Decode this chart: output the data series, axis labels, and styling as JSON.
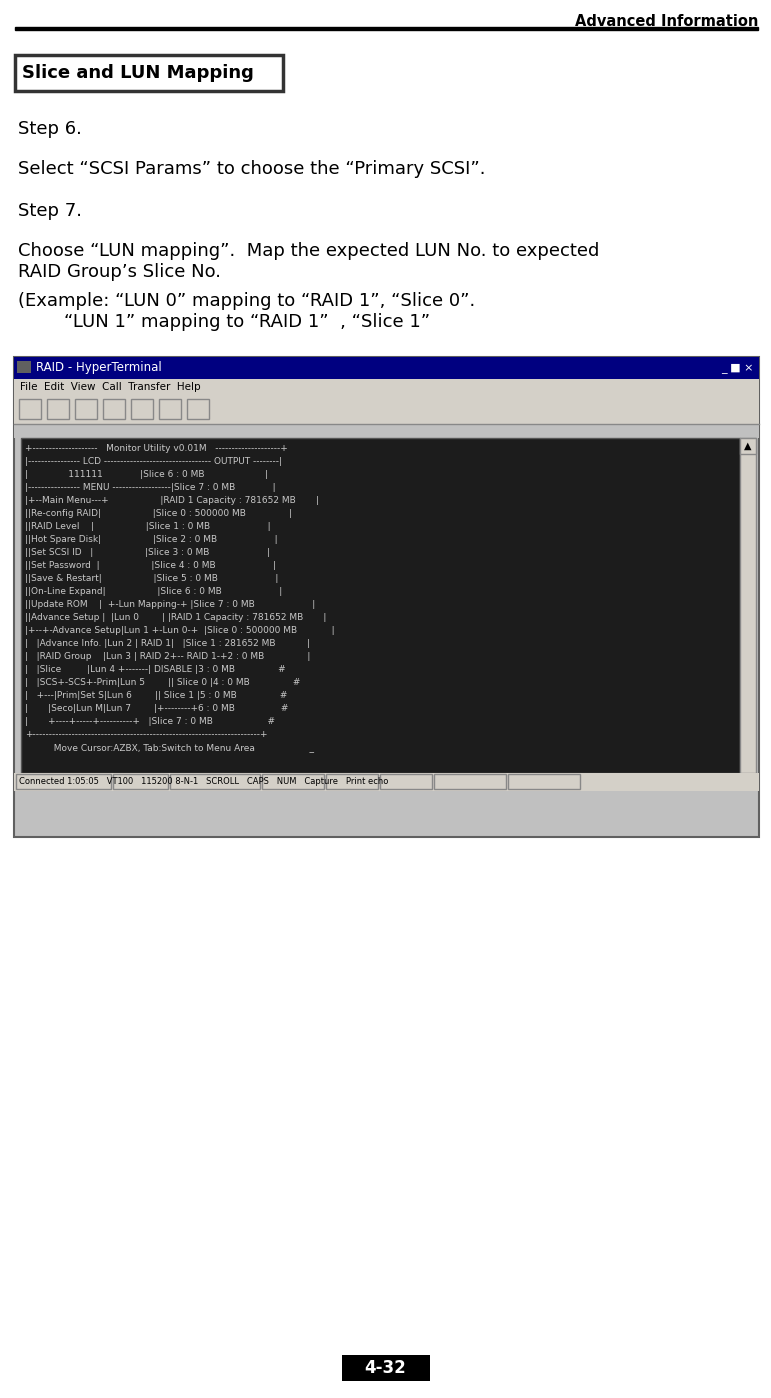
{
  "title_right": "Advanced Information",
  "section_title": "Slice and LUN Mapping",
  "step6_label": "Step 6.",
  "step6_text": "Select “SCSI Params” to choose the “Primary SCSI”.",
  "step7_label": "Step 7.",
  "step7_text1": "Choose “LUN mapping”.  Map the expected LUN No. to expected",
  "step7_text2": "RAID Group’s Slice No.",
  "step7_text3": "(Example: “LUN 0” mapping to “RAID 1”, “Slice 0”.",
  "step7_text4": "        “LUN 1” mapping to “RAID 1”  , “Slice 1”",
  "terminal_title": "RAID - HyperTerminal",
  "terminal_menu": "File  Edit  View  Call  Transfer  Help",
  "terminal_lines": [
    "+--------------------   Monitor Utility v0.01M   --------------------+",
    "|---------------- LCD --------------------------------- OUTPUT --------|",
    "|              111111             |Slice 6 : 0 MB                     |",
    "|---------------- MENU ------------------|Slice 7 : 0 MB             |",
    "|+--Main Menu---+                  |RAID 1 Capacity : 781652 MB       |",
    "||Re-config RAID|                  |Slice 0 : 500000 MB               |",
    "||RAID Level    |                  |Slice 1 : 0 MB                    |",
    "||Hot Spare Disk|                  |Slice 2 : 0 MB                    |",
    "||Set SCSI ID   |                  |Slice 3 : 0 MB                    |",
    "||Set Password  |                  |Slice 4 : 0 MB                    |",
    "||Save & Restart|                  |Slice 5 : 0 MB                    |",
    "||On-Line Expand|                  |Slice 6 : 0 MB                    |",
    "||Update ROM    |  +-Lun Mapping-+ |Slice 7 : 0 MB                    |",
    "||Advance Setup |  |Lun 0        | |RAID 1 Capacity : 781652 MB       |",
    "|+--+-Advance Setup|Lun 1 +-Lun 0-+  |Slice 0 : 500000 MB            |",
    "|   |Advance Info. |Lun 2 | RAID 1|   |Slice 1 : 281652 MB           |",
    "|   |RAID Group    |Lun 3 | RAID 2+-- RAID 1-+2 : 0 MB               |",
    "|   |Slice         |Lun 4 +-------| DISABLE |3 : 0 MB               #",
    "|   |SCS+-SCS+-Prim|Lun 5        || Slice 0 |4 : 0 MB               #",
    "|   +---|Prim|Set S|Lun 6        || Slice 1 |5 : 0 MB               #",
    "|       |Seco|Lun M|Lun 7        |+--------+6 : 0 MB                #",
    "|       +----+-----+----------+   |Slice 7 : 0 MB                   #",
    "+----------------------------------------------------------------------+",
    "          Move Cursor:AZBX, Tab:Switch to Menu Area                   _"
  ],
  "terminal_status": "Connected 1:05:05   VT100   115200 8-N-1   SCROLL   CAPS   NUM   Capture   Print echo",
  "page_number": "4-32",
  "bg_color": "#ffffff",
  "header_line_color": "#000000",
  "section_box_color": "#333333",
  "text_color": "#000000",
  "term_outer_bg": "#c0c0c0",
  "term_titlebar_bg": "#000080",
  "term_titlebar_fg": "#ffffff",
  "term_menubar_bg": "#d4d0c8",
  "term_screen_bg": "#1c1c1c",
  "term_screen_fg": "#c8c8c8",
  "term_statusbar_bg": "#d4d0c8",
  "scrollbar_bg": "#d4d0c8",
  "page_box_bg": "#000000",
  "page_box_fg": "#ffffff"
}
